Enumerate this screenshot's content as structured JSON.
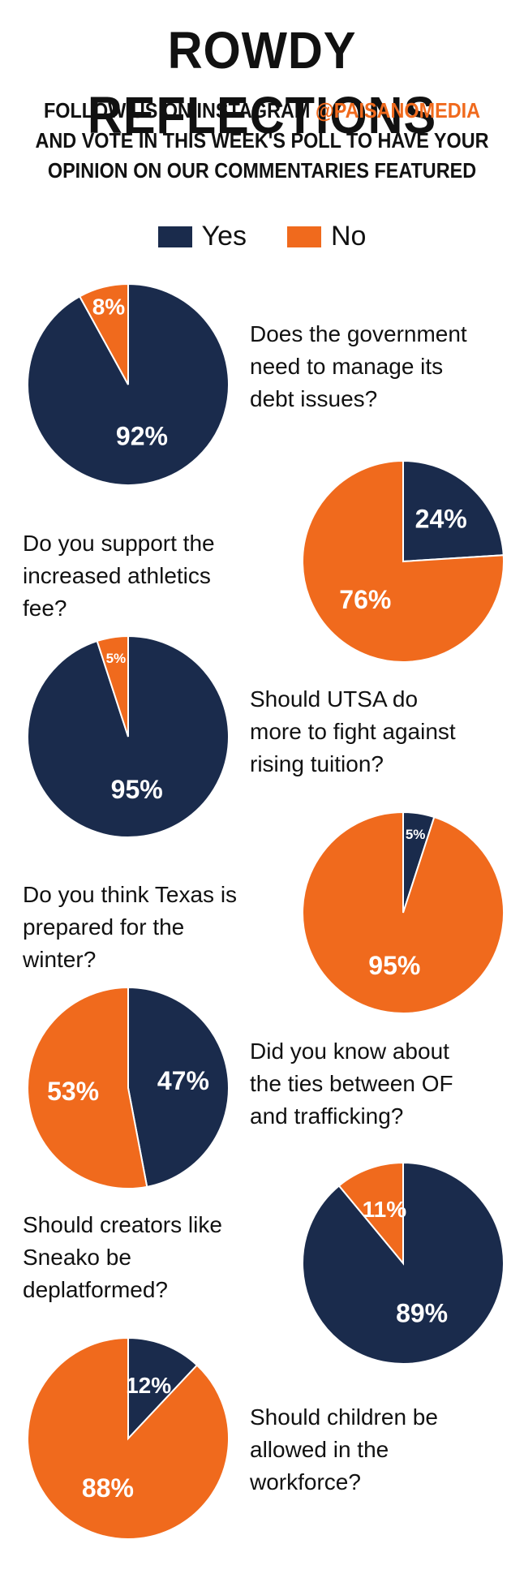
{
  "header": {
    "title": "ROWDY REFLECTIONS",
    "subtitle_line1_prefix": "FOLLOW US ON INSTAGRAM ",
    "subtitle_handle": "@PAISANOMEDIA",
    "subtitle_line2": "AND VOTE IN THIS WEEK'S POLL TO HAVE YOUR",
    "subtitle_line3": "OPINION ON OUR COMMENTARIES FEATURED"
  },
  "colors": {
    "yes": "#1a2b4c",
    "no": "#f06a1d",
    "accent": "#f06a1d"
  },
  "chart_data": {
    "type": "pie",
    "legend": [
      "Yes",
      "No"
    ],
    "charts": [
      {
        "question_lines": [
          "Does the government",
          "need to manage its",
          "debt issues?"
        ],
        "yes": 92,
        "no": 8,
        "yes_label": "92%",
        "no_label": "8%"
      },
      {
        "question_lines": [
          "Do you support the",
          "increased athletics fee?"
        ],
        "yes": 24,
        "no": 76,
        "yes_label": "24%",
        "no_label": "76%"
      },
      {
        "question_lines": [
          "Should UTSA do",
          "more to fight against",
          "rising tuition?"
        ],
        "yes": 95,
        "no": 5,
        "yes_label": "95%",
        "no_label": "5%"
      },
      {
        "question_lines": [
          "Do you think Texas is",
          "prepared for the winter?"
        ],
        "yes": 5,
        "no": 95,
        "yes_label": "5%",
        "no_label": "95%"
      },
      {
        "question_lines": [
          "Did you know about",
          "the ties between OF",
          "and trafficking?"
        ],
        "yes": 47,
        "no": 53,
        "yes_label": "47%",
        "no_label": "53%"
      },
      {
        "question_lines": [
          "Should creators like",
          "Sneako be",
          "deplatformed?"
        ],
        "yes": 89,
        "no": 11,
        "yes_label": "89%",
        "no_label": "11%"
      },
      {
        "question_lines": [
          "Should children be",
          "allowed in the",
          "workforce?"
        ],
        "yes": 12,
        "no": 88,
        "yes_label": "12%",
        "no_label": "88%"
      }
    ]
  }
}
